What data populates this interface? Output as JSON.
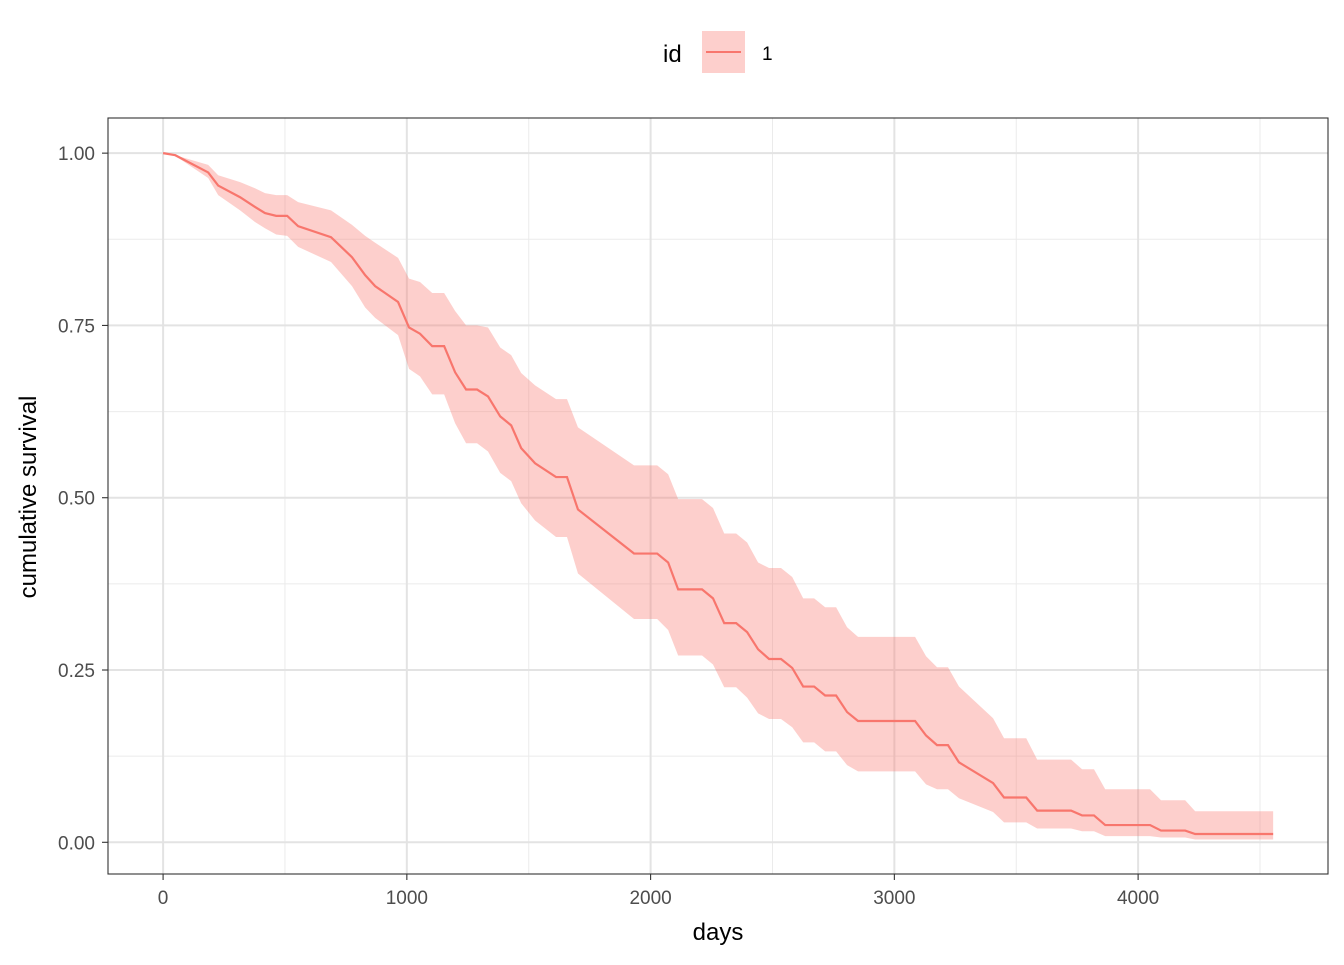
{
  "chart_data": {
    "type": "line",
    "title": "",
    "xlabel": "days",
    "ylabel": "cumulative survival",
    "xlim": [
      -226,
      4779
    ],
    "ylim": [
      -0.046,
      1.051
    ],
    "x_ticks": [
      0,
      1000,
      2000,
      3000,
      4000
    ],
    "x_tick_labels": [
      "0",
      "1000",
      "2000",
      "3000",
      "4000"
    ],
    "y_ticks": [
      0,
      0.25,
      0.5,
      0.75,
      1.0
    ],
    "y_tick_labels": [
      "0.00",
      "0.25",
      "0.50",
      "0.75",
      "1.00"
    ],
    "grid": true,
    "legend": {
      "title": "id",
      "placement": "top",
      "entries": [
        "1"
      ]
    },
    "colors": {
      "line": "#F8766D",
      "ribbon": "#F8766D"
    },
    "series": [
      {
        "name": "1",
        "x": [
          0,
          50,
          185,
          226,
          316,
          377,
          418,
          464,
          509,
          554,
          689,
          775,
          829,
          870,
          964,
          1009,
          1054,
          1104,
          1153,
          1198,
          1243,
          1288,
          1333,
          1383,
          1428,
          1469,
          1526,
          1612,
          1657,
          1702,
          1932,
          2027,
          2072,
          2113,
          2211,
          2256,
          2302,
          2351,
          2396,
          2441,
          2486,
          2535,
          2581,
          2626,
          2671,
          2716,
          2761,
          2806,
          2851,
          3085,
          3130,
          3175,
          3220,
          3265,
          3405,
          3450,
          3541,
          3586,
          3725,
          3770,
          3819,
          3865,
          4049,
          4094,
          4193,
          4234,
          4554
        ],
        "y": [
          1.0,
          0.997,
          0.972,
          0.953,
          0.936,
          0.922,
          0.913,
          0.909,
          0.909,
          0.894,
          0.878,
          0.849,
          0.823,
          0.807,
          0.784,
          0.747,
          0.738,
          0.72,
          0.72,
          0.682,
          0.657,
          0.657,
          0.647,
          0.618,
          0.605,
          0.572,
          0.55,
          0.53,
          0.53,
          0.483,
          0.419,
          0.419,
          0.406,
          0.367,
          0.367,
          0.354,
          0.318,
          0.318,
          0.305,
          0.28,
          0.266,
          0.266,
          0.253,
          0.226,
          0.226,
          0.213,
          0.213,
          0.189,
          0.176,
          0.176,
          0.155,
          0.141,
          0.141,
          0.116,
          0.086,
          0.065,
          0.065,
          0.046,
          0.046,
          0.039,
          0.039,
          0.025,
          0.025,
          0.017,
          0.017,
          0.012,
          0.012
        ],
        "upper": [
          1.0,
          0.997,
          0.983,
          0.968,
          0.958,
          0.949,
          0.942,
          0.939,
          0.939,
          0.929,
          0.917,
          0.896,
          0.88,
          0.87,
          0.848,
          0.818,
          0.813,
          0.797,
          0.797,
          0.771,
          0.75,
          0.75,
          0.747,
          0.718,
          0.707,
          0.681,
          0.663,
          0.643,
          0.643,
          0.602,
          0.547,
          0.547,
          0.534,
          0.498,
          0.498,
          0.485,
          0.448,
          0.448,
          0.435,
          0.406,
          0.398,
          0.398,
          0.385,
          0.354,
          0.354,
          0.341,
          0.341,
          0.312,
          0.298,
          0.298,
          0.27,
          0.254,
          0.254,
          0.226,
          0.18,
          0.151,
          0.151,
          0.12,
          0.12,
          0.106,
          0.106,
          0.077,
          0.077,
          0.061,
          0.061,
          0.045,
          0.045
        ],
        "lower": [
          1.0,
          0.996,
          0.964,
          0.939,
          0.917,
          0.9,
          0.891,
          0.882,
          0.88,
          0.864,
          0.842,
          0.807,
          0.776,
          0.761,
          0.736,
          0.687,
          0.676,
          0.65,
          0.65,
          0.608,
          0.579,
          0.579,
          0.567,
          0.536,
          0.524,
          0.492,
          0.467,
          0.443,
          0.443,
          0.39,
          0.324,
          0.324,
          0.308,
          0.271,
          0.271,
          0.258,
          0.225,
          0.225,
          0.21,
          0.187,
          0.179,
          0.179,
          0.167,
          0.145,
          0.145,
          0.132,
          0.132,
          0.112,
          0.103,
          0.103,
          0.084,
          0.077,
          0.077,
          0.064,
          0.044,
          0.029,
          0.029,
          0.02,
          0.02,
          0.016,
          0.016,
          0.009,
          0.009,
          0.007,
          0.007,
          0.004,
          0.004
        ]
      }
    ]
  }
}
